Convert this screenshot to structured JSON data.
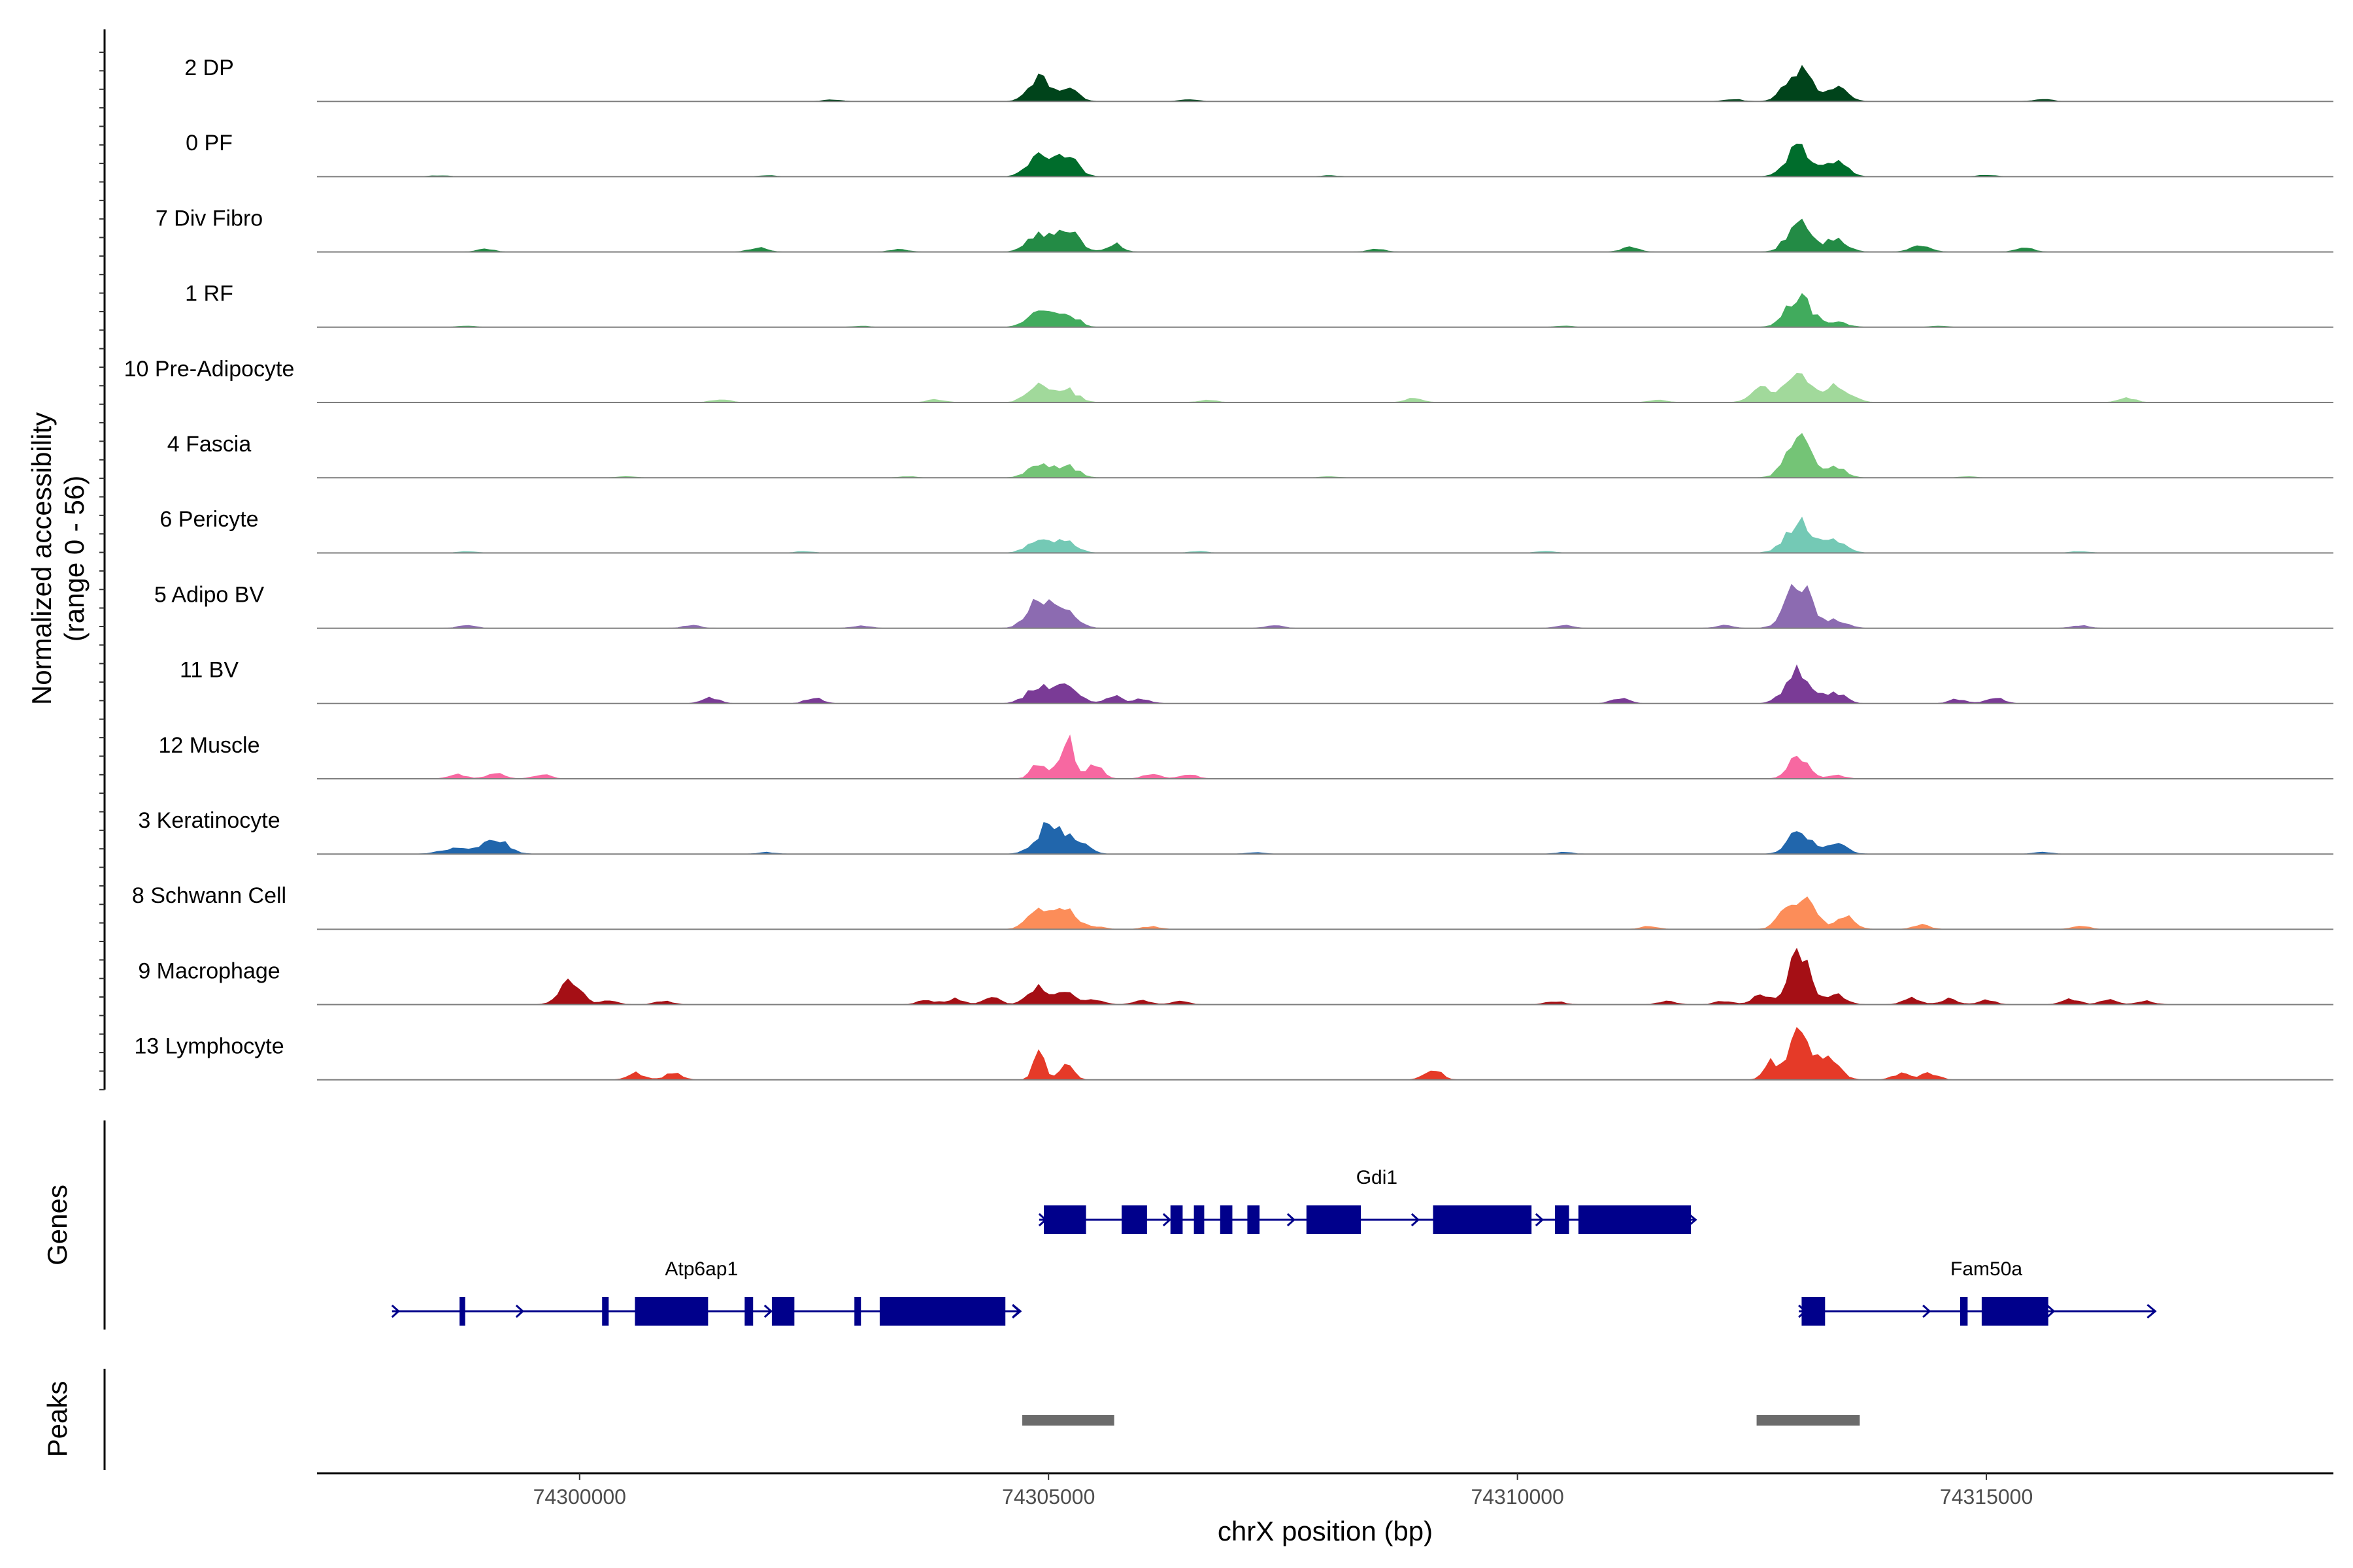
{
  "chart_data": {
    "type": "area",
    "subtype": "genome-browser-coverage-tracks",
    "ylabel": "Normalized accessibility\n(range 0 - 56)",
    "y_range": [
      0,
      56
    ],
    "xlabel": "chrX position (bp)",
    "xlim": [
      74297200,
      74318700
    ],
    "x_ticks": [
      74300000,
      74305000,
      74310000,
      74315000
    ],
    "x_tick_labels": [
      "74300000",
      "74305000",
      "74310000",
      "74315000"
    ],
    "genes_panel_label": "Genes",
    "peaks_panel_label": "Peaks",
    "tracks": [
      {
        "name": "2 DP",
        "color": "#00441b",
        "peaks": [
          [
            74304900,
            0.42,
            110
          ],
          [
            74305200,
            0.22,
            110
          ],
          [
            74313000,
            0.62,
            130
          ],
          [
            74313400,
            0.25,
            110
          ]
        ],
        "islands": [
          [
            74302700,
            0.03
          ],
          [
            74306500,
            0.03
          ],
          [
            74312300,
            0.04
          ],
          [
            74315600,
            0.04
          ]
        ]
      },
      {
        "name": "0 PF",
        "color": "#006d2c",
        "peaks": [
          [
            74304900,
            0.38,
            120
          ],
          [
            74305200,
            0.35,
            110
          ],
          [
            74313000,
            0.55,
            130
          ],
          [
            74313400,
            0.28,
            110
          ]
        ],
        "islands": [
          [
            74298500,
            0.02
          ],
          [
            74302000,
            0.02
          ],
          [
            74308000,
            0.02
          ],
          [
            74315000,
            0.03
          ]
        ]
      },
      {
        "name": "7 Div Fibro",
        "color": "#238b45",
        "peaks": [
          [
            74304900,
            0.32,
            120
          ],
          [
            74305200,
            0.38,
            120
          ],
          [
            74305700,
            0.15,
            80
          ],
          [
            74313000,
            0.55,
            120
          ],
          [
            74313400,
            0.25,
            110
          ],
          [
            74314300,
            0.12,
            100
          ]
        ],
        "islands": [
          [
            74299000,
            0.05
          ],
          [
            74301900,
            0.08
          ],
          [
            74303400,
            0.05
          ],
          [
            74308500,
            0.05
          ],
          [
            74311200,
            0.08
          ],
          [
            74315400,
            0.08
          ]
        ]
      },
      {
        "name": "1 RF",
        "color": "#41ab5d",
        "peaks": [
          [
            74304900,
            0.28,
            120
          ],
          [
            74305200,
            0.25,
            110
          ],
          [
            74313000,
            0.55,
            130
          ],
          [
            74313400,
            0.1,
            110
          ]
        ],
        "islands": [
          [
            74298800,
            0.02
          ],
          [
            74303000,
            0.02
          ],
          [
            74310500,
            0.02
          ],
          [
            74314500,
            0.02
          ]
        ]
      },
      {
        "name": "10 Pre-Adipocyte",
        "color": "#a1d99b",
        "peaks": [
          [
            74304900,
            0.35,
            120
          ],
          [
            74305200,
            0.22,
            110
          ],
          [
            74312600,
            0.28,
            110
          ],
          [
            74313000,
            0.45,
            140
          ],
          [
            74313400,
            0.28,
            140
          ]
        ],
        "islands": [
          [
            74301500,
            0.06
          ],
          [
            74303800,
            0.05
          ],
          [
            74306700,
            0.05
          ],
          [
            74308900,
            0.08
          ],
          [
            74311500,
            0.05
          ],
          [
            74316500,
            0.08
          ]
        ]
      },
      {
        "name": "4 Fascia",
        "color": "#74c476",
        "peaks": [
          [
            74304900,
            0.22,
            120
          ],
          [
            74305200,
            0.22,
            110
          ],
          [
            74313000,
            0.7,
            130
          ],
          [
            74313400,
            0.18,
            100
          ]
        ],
        "islands": [
          [
            74300500,
            0.02
          ],
          [
            74303500,
            0.02
          ],
          [
            74308000,
            0.02
          ],
          [
            74314800,
            0.02
          ]
        ]
      },
      {
        "name": "6 Pericyte",
        "color": "#74c9b5",
        "peaks": [
          [
            74304900,
            0.25,
            120
          ],
          [
            74305200,
            0.22,
            110
          ],
          [
            74313000,
            0.55,
            140
          ],
          [
            74313400,
            0.22,
            110
          ]
        ],
        "islands": [
          [
            74298800,
            0.03
          ],
          [
            74302400,
            0.03
          ],
          [
            74306600,
            0.03
          ],
          [
            74310300,
            0.03
          ],
          [
            74316000,
            0.03
          ]
        ]
      },
      {
        "name": "5 Adipo BV",
        "color": "#8c6bb1",
        "peaks": [
          [
            74304900,
            0.55,
            120
          ],
          [
            74305200,
            0.35,
            110
          ],
          [
            74313000,
            0.9,
            130
          ],
          [
            74313400,
            0.15,
            110
          ]
        ],
        "islands": [
          [
            74298800,
            0.05
          ],
          [
            74301200,
            0.05
          ],
          [
            74303000,
            0.05
          ],
          [
            74307400,
            0.05
          ],
          [
            74310500,
            0.05
          ],
          [
            74312200,
            0.05
          ],
          [
            74316000,
            0.05
          ]
        ]
      },
      {
        "name": "11 BV",
        "color": "#7a3b96",
        "peaks": [
          [
            74304900,
            0.3,
            130
          ],
          [
            74305200,
            0.38,
            120
          ],
          [
            74305700,
            0.15,
            80
          ],
          [
            74313000,
            0.62,
            130
          ],
          [
            74313400,
            0.2,
            100
          ]
        ],
        "islands": [
          [
            74301400,
            0.1
          ],
          [
            74302500,
            0.1
          ],
          [
            74306000,
            0.08
          ],
          [
            74311100,
            0.1
          ],
          [
            74314700,
            0.08
          ],
          [
            74315100,
            0.1
          ]
        ]
      },
      {
        "name": "12 Muscle",
        "color": "#f768a1",
        "peaks": [
          [
            74304900,
            0.3,
            80
          ],
          [
            74305200,
            0.7,
            80
          ],
          [
            74305500,
            0.25,
            80
          ],
          [
            74313000,
            0.42,
            100
          ]
        ],
        "islands": [
          [
            74298700,
            0.08
          ],
          [
            74299100,
            0.1
          ],
          [
            74299600,
            0.08
          ],
          [
            74306100,
            0.08
          ],
          [
            74306500,
            0.08
          ],
          [
            74313400,
            0.06
          ]
        ]
      },
      {
        "name": "3 Keratinocyte",
        "color": "#2166ac",
        "peaks": [
          [
            74298700,
            0.12,
            150
          ],
          [
            74299100,
            0.28,
            130
          ],
          [
            74305000,
            0.52,
            130
          ],
          [
            74305300,
            0.28,
            110
          ],
          [
            74313000,
            0.48,
            110
          ],
          [
            74313400,
            0.18,
            110
          ]
        ],
        "islands": [
          [
            74302000,
            0.03
          ],
          [
            74307200,
            0.03
          ],
          [
            74310500,
            0.03
          ],
          [
            74315600,
            0.03
          ]
        ]
      },
      {
        "name": "8 Schwann Cell",
        "color": "#fc8d59",
        "peaks": [
          [
            74304900,
            0.32,
            120
          ],
          [
            74305200,
            0.38,
            110
          ],
          [
            74312900,
            0.4,
            110
          ],
          [
            74313100,
            0.52,
            110
          ],
          [
            74313500,
            0.22,
            100
          ]
        ],
        "islands": [
          [
            74305500,
            0.05
          ],
          [
            74306100,
            0.05
          ],
          [
            74311400,
            0.05
          ],
          [
            74314300,
            0.08
          ],
          [
            74316000,
            0.06
          ]
        ]
      },
      {
        "name": "9 Macrophage",
        "color": "#a50f15",
        "peaks": [
          [
            74299900,
            0.42,
            110
          ],
          [
            74304900,
            0.32,
            110
          ],
          [
            74305200,
            0.25,
            100
          ],
          [
            74313000,
            0.95,
            110
          ],
          [
            74313400,
            0.2,
            100
          ],
          [
            74312600,
            0.18,
            90
          ]
        ],
        "islands": [
          [
            74300300,
            0.08
          ],
          [
            74300900,
            0.06
          ],
          [
            74303700,
            0.08
          ],
          [
            74304000,
            0.1
          ],
          [
            74304400,
            0.12
          ],
          [
            74305500,
            0.08
          ],
          [
            74306000,
            0.08
          ],
          [
            74306400,
            0.06
          ],
          [
            74310400,
            0.06
          ],
          [
            74311600,
            0.06
          ],
          [
            74312200,
            0.06
          ],
          [
            74314200,
            0.12
          ],
          [
            74314600,
            0.1
          ],
          [
            74315000,
            0.08
          ],
          [
            74315900,
            0.1
          ],
          [
            74316300,
            0.08
          ],
          [
            74316700,
            0.06
          ]
        ]
      },
      {
        "name": "13 Lymphocyte",
        "color": "#e53a28",
        "peaks": [
          [
            74304900,
            0.5,
            60
          ],
          [
            74305200,
            0.35,
            70
          ],
          [
            74312700,
            0.35,
            70
          ],
          [
            74313000,
            1.0,
            100
          ],
          [
            74313300,
            0.45,
            120
          ]
        ],
        "islands": [
          [
            74300600,
            0.12
          ],
          [
            74301000,
            0.12
          ],
          [
            74309100,
            0.18
          ],
          [
            74314100,
            0.12
          ],
          [
            74314400,
            0.12
          ]
        ]
      }
    ],
    "genes": [
      {
        "name": "Gdi1",
        "strand": "+",
        "start": 74304900,
        "end": 74311900,
        "row": 1,
        "exons": [
          [
            74304950,
            74305400
          ],
          [
            74305780,
            74306050
          ],
          [
            74306300,
            74306430
          ],
          [
            74306550,
            74306660
          ],
          [
            74306830,
            74306960
          ],
          [
            74307120,
            74307250
          ],
          [
            74307750,
            74308330
          ],
          [
            74309100,
            74310150
          ],
          [
            74310400,
            74310550
          ],
          [
            74310650,
            74311850
          ]
        ]
      },
      {
        "name": "Atp6ap1",
        "strand": "+",
        "start": 74298000,
        "end": 74304700,
        "row": 2,
        "exons": [
          [
            74298720,
            74298780
          ],
          [
            74300240,
            74300310
          ],
          [
            74300590,
            74301370
          ],
          [
            74301760,
            74301850
          ],
          [
            74302050,
            74302290
          ],
          [
            74302930,
            74303000
          ],
          [
            74303200,
            74304540
          ]
        ]
      },
      {
        "name": "Fam50a",
        "strand": "+",
        "start": 74313000,
        "end": 74316800,
        "row": 2,
        "exons": [
          [
            74313030,
            74313280
          ],
          [
            74314720,
            74314800
          ],
          [
            74314950,
            74315660
          ]
        ]
      }
    ],
    "peaks_regions": [
      [
        74304720,
        74305700
      ],
      [
        74312550,
        74313650
      ]
    ]
  }
}
